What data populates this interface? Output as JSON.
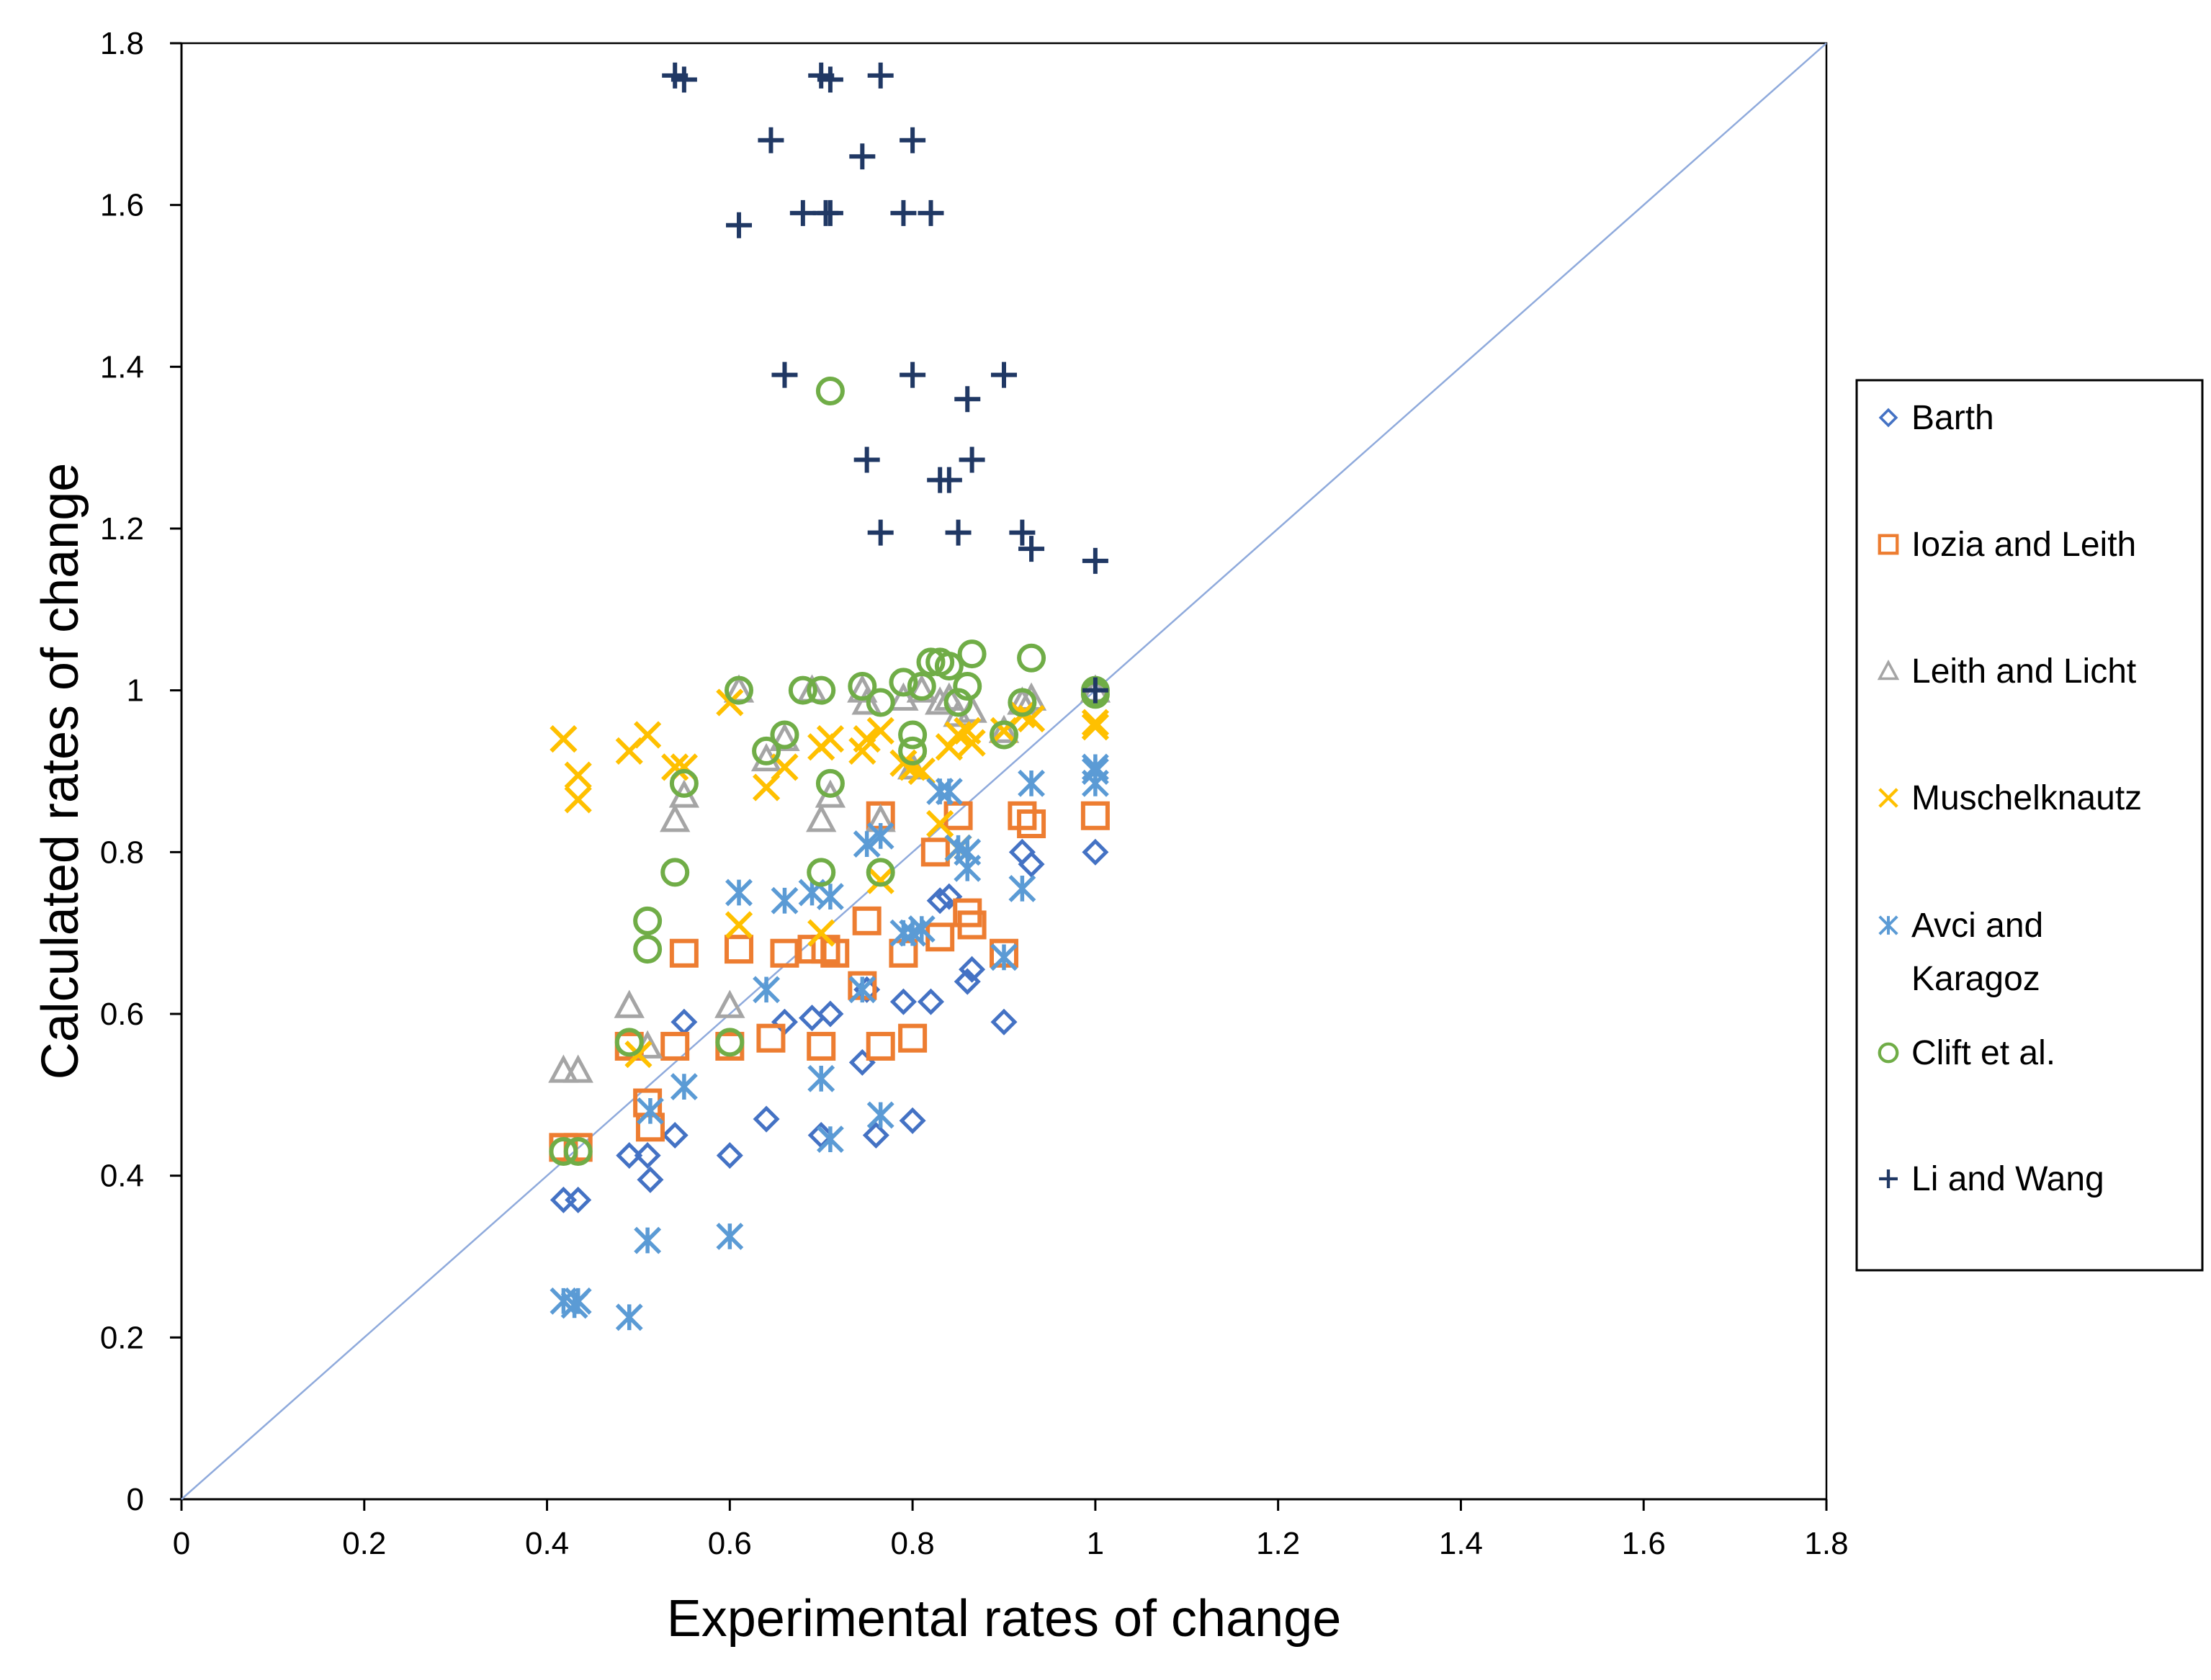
{
  "chart_data": {
    "type": "scatter",
    "title": "",
    "xlabel": "Experimental rates of change",
    "ylabel": "Calculated rates of change",
    "xlim": [
      0,
      1.8
    ],
    "ylim": [
      0,
      1.8
    ],
    "xticks": [
      0,
      0.2,
      0.4,
      0.6,
      0.8,
      1,
      1.2,
      1.4,
      1.6,
      1.8
    ],
    "yticks": [
      0,
      0.2,
      0.4,
      0.6,
      0.8,
      1,
      1.2,
      1.4,
      1.6,
      1.8
    ],
    "tick_labels": [
      "0",
      "0.2",
      "0.4",
      "0.6",
      "0.8",
      "1",
      "1.2",
      "1.4",
      "1.6",
      "1.8"
    ],
    "grid": false,
    "legend_position": "right",
    "reference_line": {
      "name": "y = x",
      "points": [
        [
          0,
          0
        ],
        [
          1.8,
          1.8
        ]
      ],
      "color": "#8FAADC"
    },
    "series": [
      {
        "name": "Barth",
        "marker": "diamond",
        "color": "#4472C4",
        "legend_label_lines": [
          "Barth"
        ],
        "points": [
          [
            0.418,
            0.37
          ],
          [
            0.434,
            0.37
          ],
          [
            0.49,
            0.425
          ],
          [
            0.51,
            0.425
          ],
          [
            0.513,
            0.395
          ],
          [
            0.54,
            0.45
          ],
          [
            0.55,
            0.59
          ],
          [
            0.6,
            0.425
          ],
          [
            0.64,
            0.47
          ],
          [
            0.66,
            0.59
          ],
          [
            0.69,
            0.595
          ],
          [
            0.7,
            0.45
          ],
          [
            0.71,
            0.6
          ],
          [
            0.745,
            0.54
          ],
          [
            0.75,
            0.63
          ],
          [
            0.76,
            0.45
          ],
          [
            0.79,
            0.615
          ],
          [
            0.8,
            0.468
          ],
          [
            0.82,
            0.615
          ],
          [
            0.83,
            0.74
          ],
          [
            0.84,
            0.745
          ],
          [
            0.86,
            0.64
          ],
          [
            0.865,
            0.655
          ],
          [
            0.9,
            0.59
          ],
          [
            0.92,
            0.8
          ],
          [
            0.93,
            0.785
          ],
          [
            1.0,
            0.8
          ]
        ]
      },
      {
        "name": "Iozia and Leith",
        "marker": "square",
        "color": "#ED7D31",
        "legend_label_lines": [
          "Iozia and Leith"
        ],
        "points": [
          [
            0.418,
            0.435
          ],
          [
            0.434,
            0.435
          ],
          [
            0.49,
            0.56
          ],
          [
            0.51,
            0.49
          ],
          [
            0.513,
            0.46
          ],
          [
            0.54,
            0.56
          ],
          [
            0.55,
            0.675
          ],
          [
            0.6,
            0.56
          ],
          [
            0.61,
            0.68
          ],
          [
            0.645,
            0.57
          ],
          [
            0.66,
            0.675
          ],
          [
            0.69,
            0.68
          ],
          [
            0.7,
            0.56
          ],
          [
            0.705,
            0.68
          ],
          [
            0.715,
            0.675
          ],
          [
            0.745,
            0.635
          ],
          [
            0.75,
            0.715
          ],
          [
            0.765,
            0.56
          ],
          [
            0.765,
            0.845
          ],
          [
            0.79,
            0.675
          ],
          [
            0.8,
            0.57
          ],
          [
            0.825,
            0.8
          ],
          [
            0.83,
            0.695
          ],
          [
            0.85,
            0.845
          ],
          [
            0.86,
            0.725
          ],
          [
            0.865,
            0.71
          ],
          [
            0.9,
            0.675
          ],
          [
            0.92,
            0.845
          ],
          [
            0.93,
            0.835
          ],
          [
            1.0,
            0.845
          ]
        ]
      },
      {
        "name": "Leith and Licht",
        "marker": "triangle",
        "color": "#A5A5A5",
        "legend_label_lines": [
          "Leith and Licht"
        ],
        "points": [
          [
            0.418,
            0.53
          ],
          [
            0.434,
            0.53
          ],
          [
            0.49,
            0.61
          ],
          [
            0.51,
            0.56
          ],
          [
            0.54,
            0.84
          ],
          [
            0.55,
            0.87
          ],
          [
            0.6,
            0.61
          ],
          [
            0.61,
            1.0
          ],
          [
            0.64,
            0.915
          ],
          [
            0.66,
            0.94
          ],
          [
            0.69,
            1.0
          ],
          [
            0.7,
            0.84
          ],
          [
            0.71,
            0.87
          ],
          [
            0.745,
            1.0
          ],
          [
            0.75,
            0.985
          ],
          [
            0.765,
            0.84
          ],
          [
            0.79,
            0.99
          ],
          [
            0.8,
            0.905
          ],
          [
            0.81,
            1.0
          ],
          [
            0.83,
            0.985
          ],
          [
            0.84,
            0.99
          ],
          [
            0.85,
            0.97
          ],
          [
            0.865,
            0.975
          ],
          [
            0.9,
            0.95
          ],
          [
            0.92,
            0.985
          ],
          [
            0.93,
            0.99
          ],
          [
            1.0,
            1.0
          ]
        ]
      },
      {
        "name": "Muschelknautz",
        "marker": "x",
        "color": "#FFC000",
        "legend_label_lines": [
          "Muschelknautz"
        ],
        "points": [
          [
            0.418,
            0.94
          ],
          [
            0.434,
            0.895
          ],
          [
            0.434,
            0.865
          ],
          [
            0.49,
            0.925
          ],
          [
            0.51,
            0.945
          ],
          [
            0.54,
            0.905
          ],
          [
            0.55,
            0.905
          ],
          [
            0.6,
            0.985
          ],
          [
            0.61,
            0.71
          ],
          [
            0.64,
            0.88
          ],
          [
            0.66,
            0.905
          ],
          [
            0.7,
            0.93
          ],
          [
            0.71,
            0.94
          ],
          [
            0.745,
            0.925
          ],
          [
            0.75,
            0.94
          ],
          [
            0.765,
            0.95
          ],
          [
            0.79,
            0.91
          ],
          [
            0.8,
            0.905
          ],
          [
            0.81,
            0.9
          ],
          [
            0.83,
            0.835
          ],
          [
            0.84,
            0.93
          ],
          [
            0.85,
            0.945
          ],
          [
            0.86,
            0.95
          ],
          [
            0.865,
            0.935
          ],
          [
            0.9,
            0.95
          ],
          [
            0.93,
            0.965
          ],
          [
            1.0,
            0.96
          ],
          [
            1.0,
            0.955
          ],
          [
            0.5,
            0.55
          ],
          [
            0.7,
            0.7
          ],
          [
            0.765,
            0.765
          ],
          [
            0.85,
            0.805
          ],
          [
            0.92,
            0.97
          ]
        ]
      },
      {
        "name": "Avci and Karagoz",
        "marker": "star",
        "color": "#5B9BD5",
        "legend_label_lines": [
          "Avci and",
          "Karagoz"
        ],
        "points": [
          [
            0.418,
            0.245
          ],
          [
            0.434,
            0.245
          ],
          [
            0.43,
            0.24
          ],
          [
            0.49,
            0.225
          ],
          [
            0.51,
            0.32
          ],
          [
            0.513,
            0.48
          ],
          [
            0.55,
            0.51
          ],
          [
            0.6,
            0.325
          ],
          [
            0.61,
            0.75
          ],
          [
            0.64,
            0.63
          ],
          [
            0.66,
            0.74
          ],
          [
            0.69,
            0.75
          ],
          [
            0.7,
            0.52
          ],
          [
            0.71,
            0.445
          ],
          [
            0.71,
            0.745
          ],
          [
            0.745,
            0.63
          ],
          [
            0.75,
            0.81
          ],
          [
            0.765,
            0.82
          ],
          [
            0.765,
            0.475
          ],
          [
            0.79,
            0.7
          ],
          [
            0.8,
            0.7
          ],
          [
            0.81,
            0.705
          ],
          [
            0.83,
            0.875
          ],
          [
            0.84,
            0.875
          ],
          [
            0.85,
            0.805
          ],
          [
            0.86,
            0.8
          ],
          [
            0.86,
            0.78
          ],
          [
            0.9,
            0.67
          ],
          [
            0.92,
            0.755
          ],
          [
            0.93,
            0.885
          ],
          [
            1.0,
            0.9
          ],
          [
            1.0,
            0.885
          ],
          [
            1.0,
            0.905
          ]
        ]
      },
      {
        "name": "Clift et al.",
        "marker": "circle",
        "color": "#70AD47",
        "legend_label_lines": [
          "Clift et al."
        ],
        "points": [
          [
            0.418,
            0.43
          ],
          [
            0.434,
            0.43
          ],
          [
            0.49,
            0.565
          ],
          [
            0.51,
            0.715
          ],
          [
            0.51,
            0.68
          ],
          [
            0.54,
            0.775
          ],
          [
            0.55,
            0.885
          ],
          [
            0.6,
            0.565
          ],
          [
            0.61,
            1.0
          ],
          [
            0.64,
            0.925
          ],
          [
            0.66,
            0.945
          ],
          [
            0.68,
            1.0
          ],
          [
            0.7,
            1.0
          ],
          [
            0.7,
            0.775
          ],
          [
            0.71,
            0.885
          ],
          [
            0.71,
            1.37
          ],
          [
            0.745,
            1.005
          ],
          [
            0.765,
            0.985
          ],
          [
            0.765,
            0.775
          ],
          [
            0.79,
            1.01
          ],
          [
            0.8,
            0.945
          ],
          [
            0.8,
            0.925
          ],
          [
            0.81,
            1.005
          ],
          [
            0.82,
            1.035
          ],
          [
            0.83,
            1.035
          ],
          [
            0.84,
            1.03
          ],
          [
            0.85,
            0.985
          ],
          [
            0.86,
            1.005
          ],
          [
            0.865,
            1.045
          ],
          [
            0.9,
            0.945
          ],
          [
            0.92,
            0.985
          ],
          [
            0.93,
            1.04
          ],
          [
            1.0,
            1.0
          ],
          [
            1.0,
            0.995
          ]
        ]
      },
      {
        "name": "Li and Wang",
        "marker": "plus",
        "color": "#203864",
        "legend_label_lines": [
          "Li and Wang"
        ],
        "points": [
          [
            0.54,
            1.76
          ],
          [
            0.55,
            1.755
          ],
          [
            0.61,
            1.575
          ],
          [
            0.645,
            1.68
          ],
          [
            0.66,
            1.39
          ],
          [
            0.68,
            1.59
          ],
          [
            0.7,
            1.76
          ],
          [
            0.705,
            1.59
          ],
          [
            0.71,
            1.755
          ],
          [
            0.71,
            1.59
          ],
          [
            0.745,
            1.66
          ],
          [
            0.75,
            1.285
          ],
          [
            0.765,
            1.76
          ],
          [
            0.765,
            1.195
          ],
          [
            0.79,
            1.59
          ],
          [
            0.8,
            1.39
          ],
          [
            0.8,
            1.68
          ],
          [
            0.82,
            1.59
          ],
          [
            0.83,
            1.26
          ],
          [
            0.84,
            1.26
          ],
          [
            0.85,
            1.195
          ],
          [
            0.86,
            1.36
          ],
          [
            0.865,
            1.285
          ],
          [
            0.9,
            1.39
          ],
          [
            0.92,
            1.195
          ],
          [
            0.93,
            1.175
          ],
          [
            1.0,
            1.16
          ],
          [
            1.0,
            1.0
          ]
        ]
      }
    ]
  }
}
